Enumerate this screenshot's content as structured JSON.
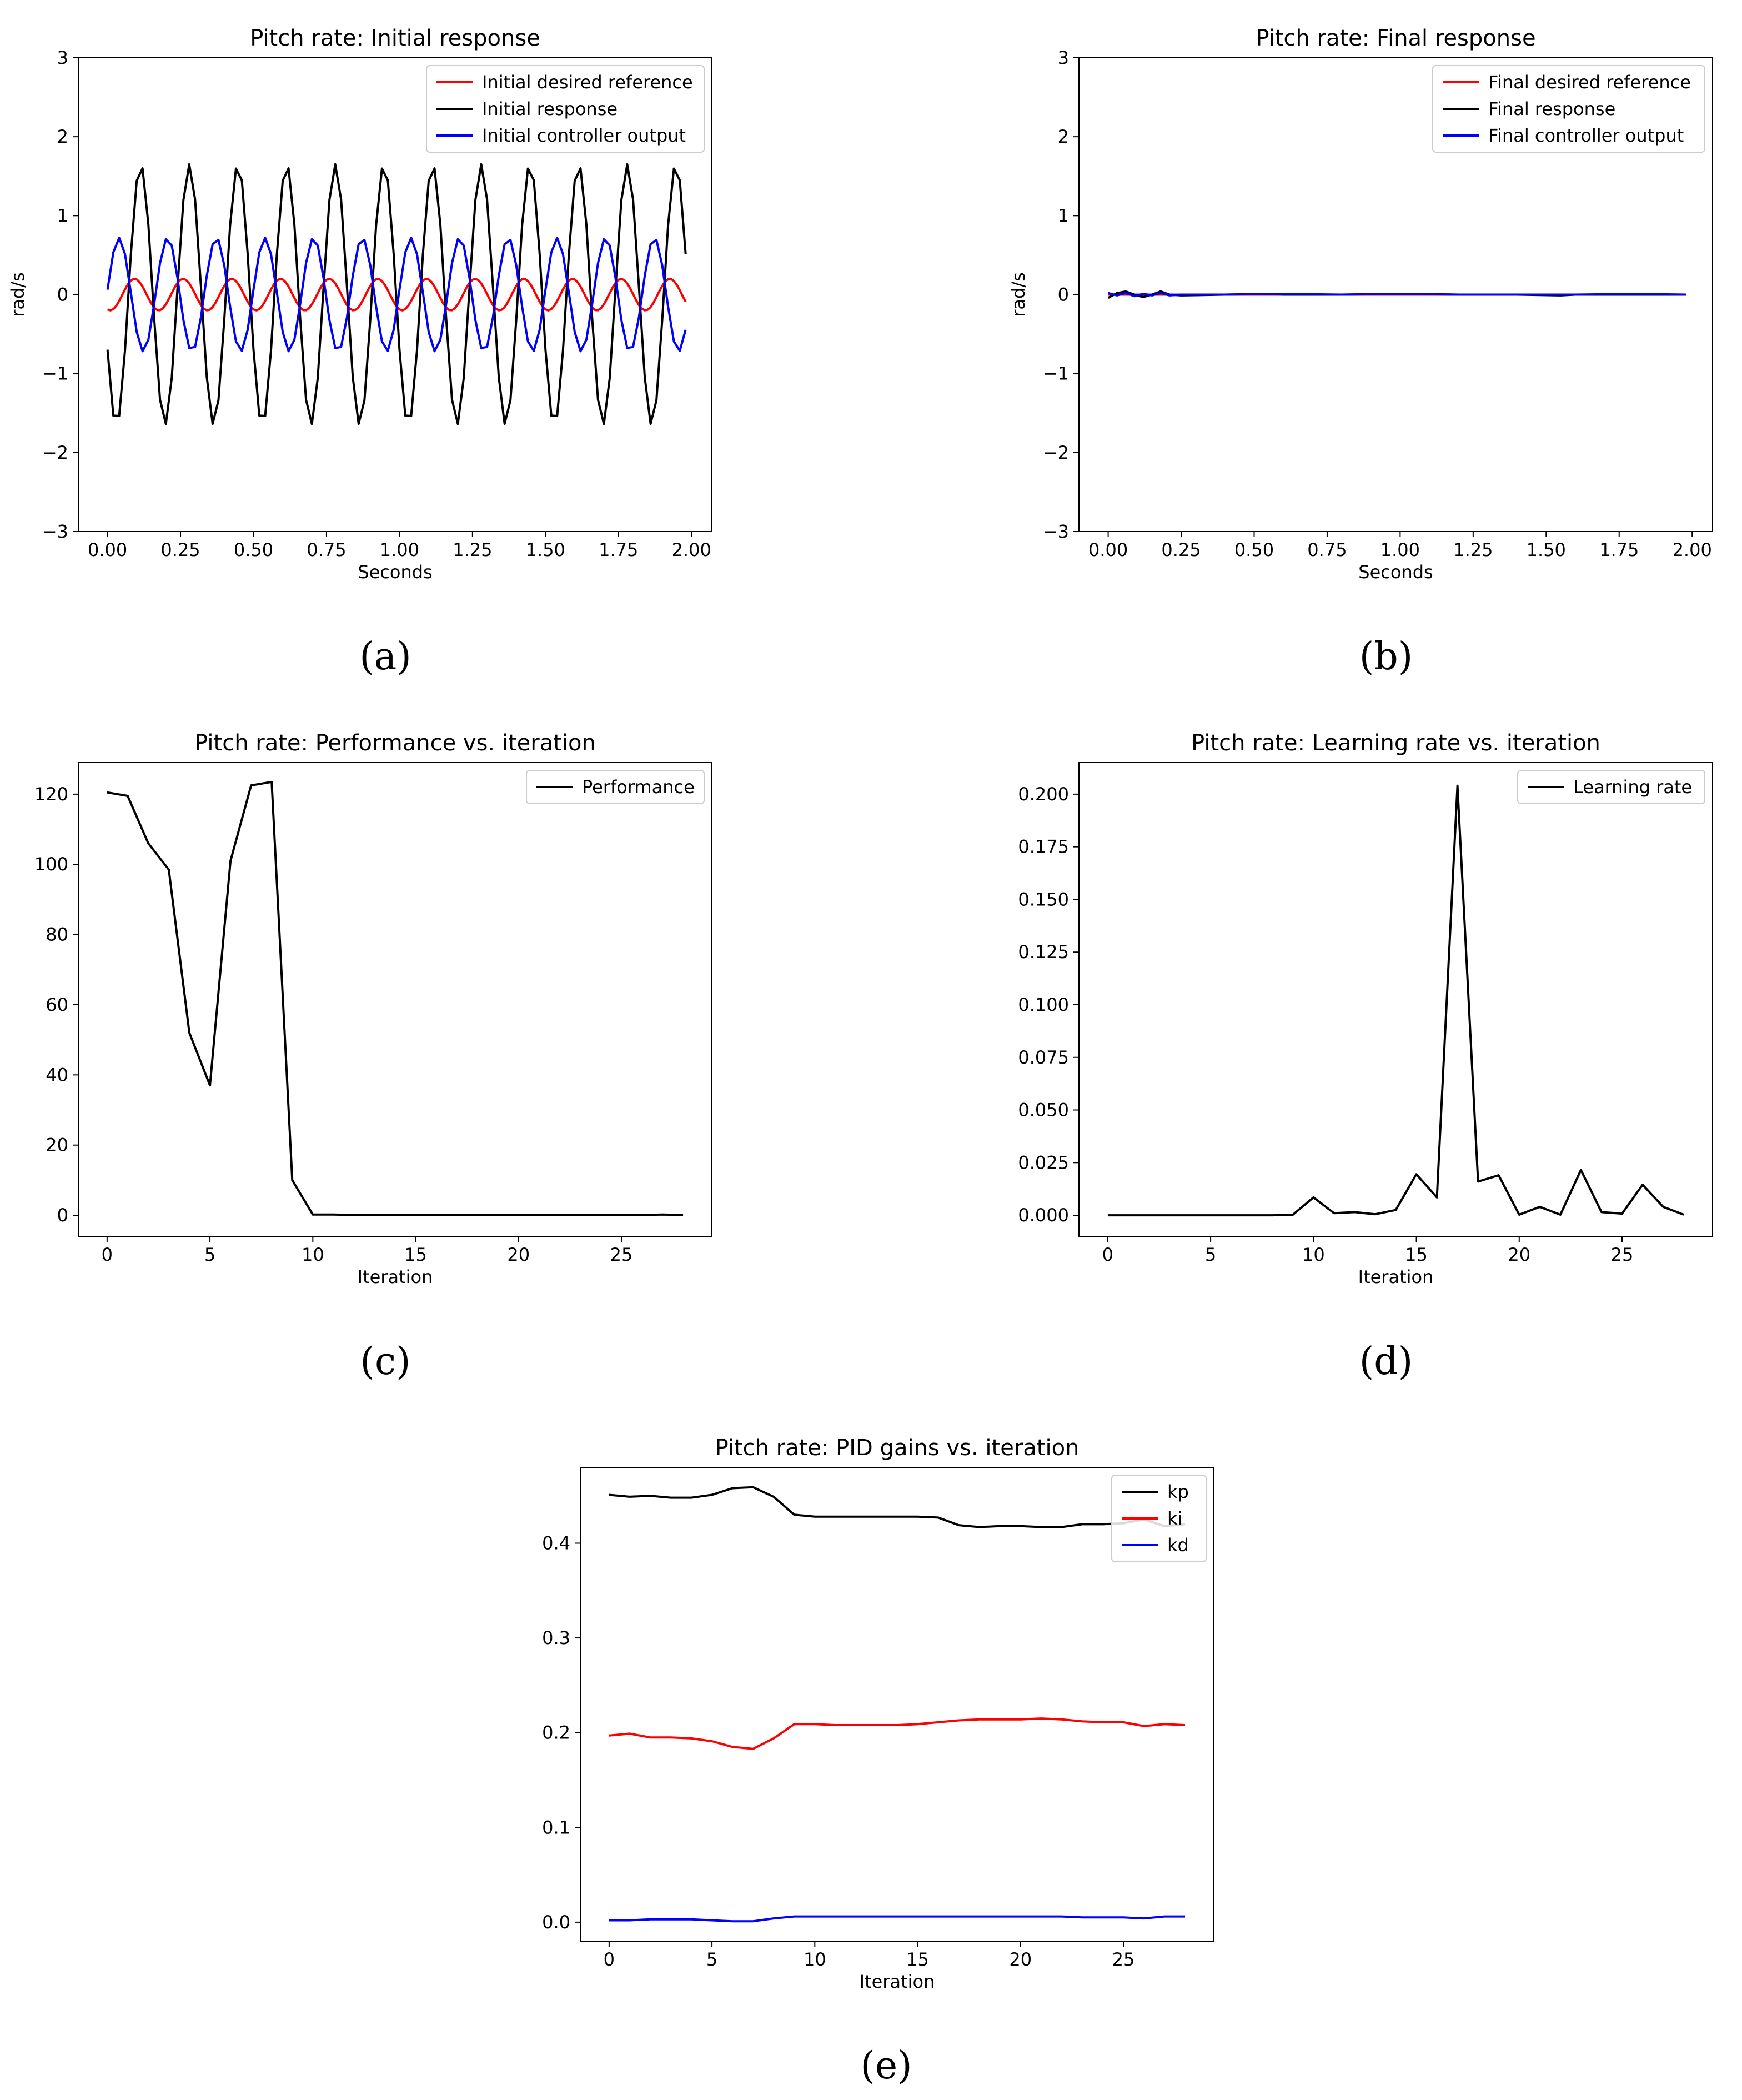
{
  "colors": {
    "red": "#ff0000",
    "black": "#000000",
    "blue": "#0000ff",
    "frame": "#000000",
    "legend_border": "#cccccc"
  },
  "captions": {
    "a": "(a)",
    "b": "(b)",
    "c": "(c)",
    "d": "(d)",
    "e": "(e)"
  },
  "chart_data": [
    {
      "id": "a",
      "type": "line",
      "title": "Pitch rate: Initial response",
      "xlabel": "Seconds",
      "ylabel": "rad/s",
      "xlim": [
        -0.1,
        2.07
      ],
      "ylim": [
        -3,
        3
      ],
      "xticks": [
        0.0,
        0.25,
        0.5,
        0.75,
        1.0,
        1.25,
        1.5,
        1.75,
        2.0
      ],
      "xtick_labels": [
        "0.00",
        "0.25",
        "0.50",
        "0.75",
        "1.00",
        "1.25",
        "1.50",
        "1.75",
        "2.00"
      ],
      "yticks": [
        -3,
        -2,
        -1,
        0,
        1,
        2,
        3
      ],
      "ytick_labels": [
        "−3",
        "−2",
        "−1",
        "0",
        "1",
        "2",
        "3"
      ],
      "legend": "top-right",
      "grid": false,
      "series": [
        {
          "name": "Initial desired reference",
          "color": "red",
          "kind": "sine",
          "amplitude": 0.2,
          "frequency_hz": 6,
          "phase_deg": 250,
          "x_start": 0,
          "x_end": 1.98,
          "step": 0.01
        },
        {
          "name": "Initial response",
          "color": "black",
          "kind": "sine",
          "amplitude": 1.65,
          "frequency_hz": 6,
          "phase_deg": 205,
          "x_start": 0,
          "x_end": 1.98,
          "step": 0.02
        },
        {
          "name": "Initial controller output",
          "color": "blue",
          "kind": "sine",
          "amplitude": 0.72,
          "frequency_hz": 6,
          "phase_deg": 5,
          "x_start": 0,
          "x_end": 1.98,
          "step": 0.02
        }
      ]
    },
    {
      "id": "b",
      "type": "line",
      "title": "Pitch rate: Final response",
      "xlabel": "Seconds",
      "ylabel": "rad/s",
      "xlim": [
        -0.1,
        2.07
      ],
      "ylim": [
        -3,
        3
      ],
      "xticks": [
        0.0,
        0.25,
        0.5,
        0.75,
        1.0,
        1.25,
        1.5,
        1.75,
        2.0
      ],
      "xtick_labels": [
        "0.00",
        "0.25",
        "0.50",
        "0.75",
        "1.00",
        "1.25",
        "1.50",
        "1.75",
        "2.00"
      ],
      "yticks": [
        -3,
        -2,
        -1,
        0,
        1,
        2,
        3
      ],
      "ytick_labels": [
        "−3",
        "−2",
        "−1",
        "0",
        "1",
        "2",
        "3"
      ],
      "legend": "top-right",
      "grid": false,
      "series": [
        {
          "name": "Final desired reference",
          "color": "red",
          "x": [
            0,
            0.2,
            0.5,
            1.0,
            1.5,
            1.98
          ],
          "y": [
            0,
            0,
            0,
            0,
            0,
            0
          ]
        },
        {
          "name": "Final response",
          "color": "black",
          "x": [
            0,
            0.03,
            0.06,
            0.09,
            0.12,
            0.15,
            0.18,
            0.21,
            0.25,
            0.4,
            0.55,
            0.6,
            0.8,
            1.0,
            1.2,
            1.4,
            1.55,
            1.6,
            1.8,
            1.98
          ],
          "y": [
            -0.04,
            0.02,
            0.04,
            0.0,
            -0.03,
            0.0,
            0.04,
            0.0,
            -0.01,
            0.0,
            0.01,
            0.0,
            0.0,
            0.01,
            0.0,
            0.0,
            -0.01,
            0.0,
            0.0,
            0.0
          ]
        },
        {
          "name": "Final controller output",
          "color": "blue",
          "x": [
            0,
            0.03,
            0.06,
            0.09,
            0.12,
            0.15,
            0.18,
            0.21,
            0.25,
            0.4,
            0.6,
            0.8,
            1.0,
            1.2,
            1.4,
            1.6,
            1.8,
            1.98
          ],
          "y": [
            0.02,
            -0.01,
            0.02,
            -0.02,
            0.01,
            -0.01,
            0.02,
            -0.01,
            0.0,
            0.0,
            0.01,
            0.0,
            0.01,
            0.0,
            0.0,
            0.0,
            0.01,
            0.0
          ]
        }
      ]
    },
    {
      "id": "c",
      "type": "line",
      "title": "Pitch rate: Performance vs. iteration",
      "xlabel": "Iteration",
      "ylabel": "",
      "xlim": [
        -1.4,
        29.4
      ],
      "ylim": [
        -6,
        129
      ],
      "xticks": [
        0,
        5,
        10,
        15,
        20,
        25
      ],
      "xtick_labels": [
        "0",
        "5",
        "10",
        "15",
        "20",
        "25"
      ],
      "yticks": [
        0,
        20,
        40,
        60,
        80,
        100,
        120
      ],
      "ytick_labels": [
        "0",
        "20",
        "40",
        "60",
        "80",
        "100",
        "120"
      ],
      "legend": "top-right",
      "grid": false,
      "series": [
        {
          "name": "Performance",
          "color": "black",
          "x": [
            0,
            1,
            2,
            3,
            4,
            5,
            6,
            7,
            8,
            9,
            10,
            11,
            12,
            13,
            14,
            15,
            16,
            17,
            18,
            19,
            20,
            21,
            22,
            23,
            24,
            25,
            26,
            27,
            28
          ],
          "y": [
            120.5,
            119.5,
            106,
            98.5,
            52,
            37,
            101,
            122.5,
            123.5,
            10,
            0.2,
            0.2,
            0.1,
            0.1,
            0.1,
            0.1,
            0.1,
            0.1,
            0.1,
            0.1,
            0.1,
            0.1,
            0.1,
            0.1,
            0.1,
            0.1,
            0.1,
            0.2,
            0.1
          ]
        }
      ]
    },
    {
      "id": "d",
      "type": "line",
      "title": "Pitch rate: Learning rate vs. iteration",
      "xlabel": "Iteration",
      "ylabel": "",
      "xlim": [
        -1.4,
        29.4
      ],
      "ylim": [
        -0.01,
        0.215
      ],
      "xticks": [
        0,
        5,
        10,
        15,
        20,
        25
      ],
      "xtick_labels": [
        "0",
        "5",
        "10",
        "15",
        "20",
        "25"
      ],
      "yticks": [
        0.0,
        0.025,
        0.05,
        0.075,
        0.1,
        0.125,
        0.15,
        0.175,
        0.2
      ],
      "ytick_labels": [
        "0.000",
        "0.025",
        "0.050",
        "0.075",
        "0.100",
        "0.125",
        "0.150",
        "0.175",
        "0.200"
      ],
      "legend": "top-right",
      "grid": false,
      "series": [
        {
          "name": "Learning rate",
          "color": "black",
          "x": [
            0,
            1,
            2,
            3,
            4,
            5,
            6,
            7,
            8,
            9,
            10,
            11,
            12,
            13,
            14,
            15,
            16,
            17,
            18,
            19,
            20,
            21,
            22,
            23,
            24,
            25,
            26,
            27,
            28
          ],
          "y": [
            0,
            0,
            0,
            0,
            0,
            0,
            0,
            0,
            0,
            0.0003,
            0.0085,
            0.001,
            0.0015,
            0.0005,
            0.0025,
            0.0195,
            0.0085,
            0.204,
            0.016,
            0.019,
            0.0003,
            0.004,
            0.0003,
            0.0215,
            0.0015,
            0.0008,
            0.0145,
            0.004,
            0.0003
          ]
        }
      ]
    },
    {
      "id": "e",
      "type": "line",
      "title": "Pitch rate: PID gains vs. iteration",
      "xlabel": "Iteration",
      "ylabel": "",
      "xlim": [
        -1.4,
        29.4
      ],
      "ylim": [
        -0.02,
        0.48
      ],
      "xticks": [
        0,
        5,
        10,
        15,
        20,
        25
      ],
      "xtick_labels": [
        "0",
        "5",
        "10",
        "15",
        "20",
        "25"
      ],
      "yticks": [
        0.0,
        0.1,
        0.2,
        0.3,
        0.4
      ],
      "ytick_labels": [
        "0.0",
        "0.1",
        "0.2",
        "0.3",
        "0.4"
      ],
      "legend": "top-right",
      "grid": false,
      "series": [
        {
          "name": "kp",
          "color": "black",
          "x": [
            0,
            1,
            2,
            3,
            4,
            5,
            6,
            7,
            8,
            9,
            10,
            11,
            12,
            13,
            14,
            15,
            16,
            17,
            18,
            19,
            20,
            21,
            22,
            23,
            24,
            25,
            26,
            27,
            28
          ],
          "y": [
            0.451,
            0.449,
            0.45,
            0.448,
            0.448,
            0.451,
            0.458,
            0.459,
            0.449,
            0.43,
            0.428,
            0.428,
            0.428,
            0.428,
            0.428,
            0.428,
            0.427,
            0.419,
            0.417,
            0.418,
            0.418,
            0.417,
            0.417,
            0.42,
            0.42,
            0.421,
            0.425,
            0.418,
            0.42
          ]
        },
        {
          "name": "ki",
          "color": "red",
          "x": [
            0,
            1,
            2,
            3,
            4,
            5,
            6,
            7,
            8,
            9,
            10,
            11,
            12,
            13,
            14,
            15,
            16,
            17,
            18,
            19,
            20,
            21,
            22,
            23,
            24,
            25,
            26,
            27,
            28
          ],
          "y": [
            0.197,
            0.199,
            0.195,
            0.195,
            0.194,
            0.191,
            0.185,
            0.183,
            0.194,
            0.209,
            0.209,
            0.208,
            0.208,
            0.208,
            0.208,
            0.209,
            0.211,
            0.213,
            0.214,
            0.214,
            0.214,
            0.215,
            0.214,
            0.212,
            0.211,
            0.211,
            0.207,
            0.209,
            0.208
          ]
        },
        {
          "name": "kd",
          "color": "blue",
          "x": [
            0,
            1,
            2,
            3,
            4,
            5,
            6,
            7,
            8,
            9,
            10,
            11,
            12,
            13,
            14,
            15,
            16,
            17,
            18,
            19,
            20,
            21,
            22,
            23,
            24,
            25,
            26,
            27,
            28
          ],
          "y": [
            0.002,
            0.002,
            0.003,
            0.003,
            0.003,
            0.002,
            0.001,
            0.001,
            0.004,
            0.006,
            0.006,
            0.006,
            0.006,
            0.006,
            0.006,
            0.006,
            0.006,
            0.006,
            0.006,
            0.006,
            0.006,
            0.006,
            0.006,
            0.005,
            0.005,
            0.005,
            0.004,
            0.006,
            0.006
          ]
        }
      ]
    }
  ]
}
